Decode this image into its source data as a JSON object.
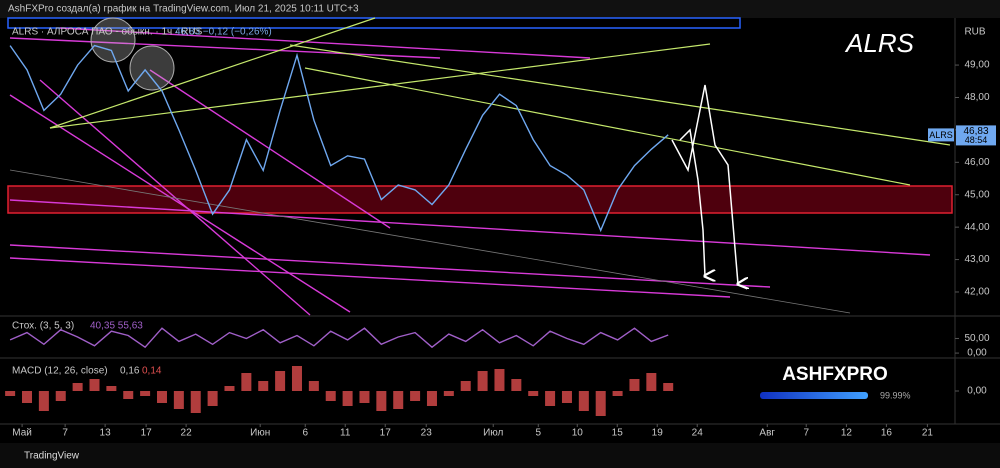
{
  "header": {
    "text": "AshFXPro создал(а) график на TradingView.com, Июл 21, 2025 10:11 UTC+3"
  },
  "footer": {
    "brand": "TradingView"
  },
  "logo": {
    "text": "ASHFXPRO",
    "percent": "99.99%"
  },
  "chart_data": [
    {
      "type": "line",
      "title": "ALRS",
      "legend": "ALRS · АЛРОСА ПАО - обыкн. · 1ч · RUS",
      "legend_values": "46,83 −0,12 (−0,26%)",
      "currency": "RUB",
      "x": [
        0,
        1,
        2,
        3,
        4,
        5,
        6,
        7,
        8,
        9,
        10,
        11,
        12,
        13,
        14,
        15,
        16,
        17,
        18,
        19,
        20,
        21,
        22,
        23,
        24,
        25,
        26,
        27,
        28,
        29,
        30,
        31,
        32,
        33,
        34,
        35,
        36,
        37,
        38,
        39
      ],
      "series": [
        {
          "name": "ALRS",
          "color": "#6fa8f0",
          "values": [
            49.6,
            48.85,
            47.6,
            48.1,
            49.0,
            49.6,
            49.45,
            48.2,
            48.85,
            48.2,
            47.0,
            45.75,
            44.4,
            45.15,
            46.7,
            45.75,
            47.6,
            49.3,
            47.3,
            45.9,
            46.2,
            46.1,
            44.85,
            45.3,
            45.15,
            44.7,
            45.3,
            46.4,
            47.45,
            48.1,
            47.75,
            46.7,
            45.9,
            45.6,
            45.15,
            43.9,
            45.15,
            45.9,
            46.4,
            46.85
          ]
        }
      ],
      "price_label": {
        "value": 46.83,
        "label": "46,83",
        "countdown": "48:54"
      },
      "xlim": [
        -0.6,
        55.7
      ],
      "xticks": [
        {
          "value": 0.71,
          "label": "Май"
        },
        {
          "value": 3.26,
          "label": "7"
        },
        {
          "value": 5.63,
          "label": "13"
        },
        {
          "value": 8.06,
          "label": "17"
        },
        {
          "value": 10.43,
          "label": "22"
        },
        {
          "value": 14.82,
          "label": "Июн"
        },
        {
          "value": 17.49,
          "label": "6"
        },
        {
          "value": 19.86,
          "label": "11"
        },
        {
          "value": 22.23,
          "label": "17"
        },
        {
          "value": 24.66,
          "label": "23"
        },
        {
          "value": 28.63,
          "label": "Июл"
        },
        {
          "value": 31.3,
          "label": "5"
        },
        {
          "value": 33.61,
          "label": "10"
        },
        {
          "value": 35.98,
          "label": "15"
        },
        {
          "value": 38.35,
          "label": "19"
        },
        {
          "value": 40.72,
          "label": "24"
        },
        {
          "value": 44.87,
          "label": "Авг"
        },
        {
          "value": 47.18,
          "label": "7"
        },
        {
          "value": 49.56,
          "label": "12"
        },
        {
          "value": 51.93,
          "label": "16"
        },
        {
          "value": 54.36,
          "label": "21"
        }
      ],
      "ylim": [
        41.29,
        50.39
      ],
      "yticks": [
        {
          "value": 49,
          "label": "49,00"
        },
        {
          "value": 48,
          "label": "48,00"
        },
        {
          "value": 47,
          "label": "47,00"
        },
        {
          "value": 46,
          "label": "46,00"
        },
        {
          "value": 45,
          "label": "45,00"
        },
        {
          "value": 44,
          "label": "44,00"
        },
        {
          "value": 43,
          "label": "43,00"
        },
        {
          "value": 42,
          "label": "42,00"
        }
      ]
    },
    {
      "type": "line",
      "title": "Стох. (3, 5, 3)",
      "legend_values": "40,35  55,63",
      "color": "#a05fc8",
      "x": [
        0,
        1,
        2,
        3,
        4,
        5,
        6,
        7,
        8,
        9,
        10,
        11,
        12,
        13,
        14,
        15,
        16,
        17,
        18,
        19,
        20,
        21,
        22,
        23,
        24,
        25,
        26,
        27,
        28,
        29,
        30,
        31,
        32,
        33,
        34,
        35,
        36,
        37,
        38,
        39
      ],
      "values": [
        45,
        70,
        30,
        80,
        55,
        25,
        75,
        60,
        20,
        85,
        40,
        65,
        30,
        70,
        50,
        80,
        35,
        60,
        25,
        75,
        45,
        85,
        30,
        55,
        70,
        20,
        65,
        40,
        80,
        35,
        60,
        25,
        75,
        50,
        30,
        70,
        45,
        85,
        40,
        62
      ],
      "ylim": [
        -10,
        120
      ],
      "yticks": [
        {
          "value": 50,
          "label": "50,00"
        },
        {
          "value": 0,
          "label": "0,00"
        }
      ]
    },
    {
      "type": "bar",
      "title": "MACD (12, 26, close)",
      "legend_values": [
        "0,16",
        "0,14"
      ],
      "color": "#d04848",
      "x": [
        0,
        1,
        2,
        3,
        4,
        5,
        6,
        7,
        8,
        9,
        10,
        11,
        12,
        13,
        14,
        15,
        16,
        17,
        18,
        19,
        20,
        21,
        22,
        23,
        24,
        25,
        26,
        27,
        28,
        29,
        30,
        31,
        32,
        33,
        34,
        35,
        36,
        37,
        38,
        39
      ],
      "values": [
        -0.05,
        -0.12,
        -0.2,
        -0.1,
        0.08,
        0.12,
        0.05,
        -0.08,
        -0.05,
        -0.12,
        -0.18,
        -0.22,
        -0.15,
        0.05,
        0.18,
        0.1,
        0.2,
        0.25,
        0.1,
        -0.1,
        -0.15,
        -0.12,
        -0.2,
        -0.18,
        -0.1,
        -0.15,
        -0.05,
        0.1,
        0.2,
        0.22,
        0.12,
        -0.05,
        -0.15,
        -0.12,
        -0.2,
        -0.25,
        -0.05,
        0.12,
        0.18,
        0.08
      ],
      "ylim": [
        -0.33,
        0.29
      ],
      "yticks": [
        {
          "value": 0,
          "label": "0,00"
        }
      ]
    }
  ]
}
